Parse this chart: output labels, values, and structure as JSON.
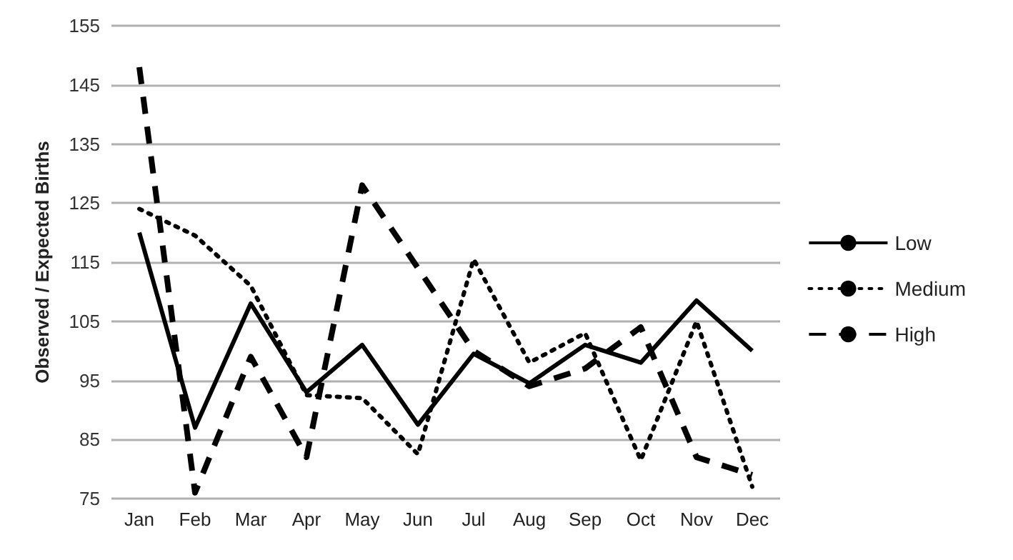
{
  "chart_data": {
    "type": "line",
    "ylabel": "Observed / Expected Births",
    "categories": [
      "Jan",
      "Feb",
      "Mar",
      "Apr",
      "May",
      "Jun",
      "Jul",
      "Aug",
      "Sep",
      "Oct",
      "Nov",
      "Dec"
    ],
    "series": [
      {
        "name": "Low",
        "color": "#000000",
        "line_style": "solid",
        "values": [
          120,
          87,
          108,
          93,
          101,
          87.5,
          99.5,
          94.5,
          101,
          98,
          108.5,
          100
        ]
      },
      {
        "name": "Medium",
        "color": "#000000",
        "line_style": "dotted",
        "values": [
          124,
          119.5,
          111,
          92.5,
          92,
          82.5,
          115.5,
          98,
          103,
          81.5,
          105,
          77
        ]
      },
      {
        "name": "High",
        "color": "#000000",
        "line_style": "dashed",
        "values": [
          148,
          76,
          99,
          82,
          128,
          114,
          100,
          94,
          97,
          104,
          82,
          79
        ]
      }
    ],
    "ylim": [
      75,
      155
    ],
    "yticks": [
      75,
      85,
      95,
      105,
      115,
      125,
      135,
      145,
      155
    ],
    "grid": "y",
    "legend": "right",
    "marker": "none"
  }
}
